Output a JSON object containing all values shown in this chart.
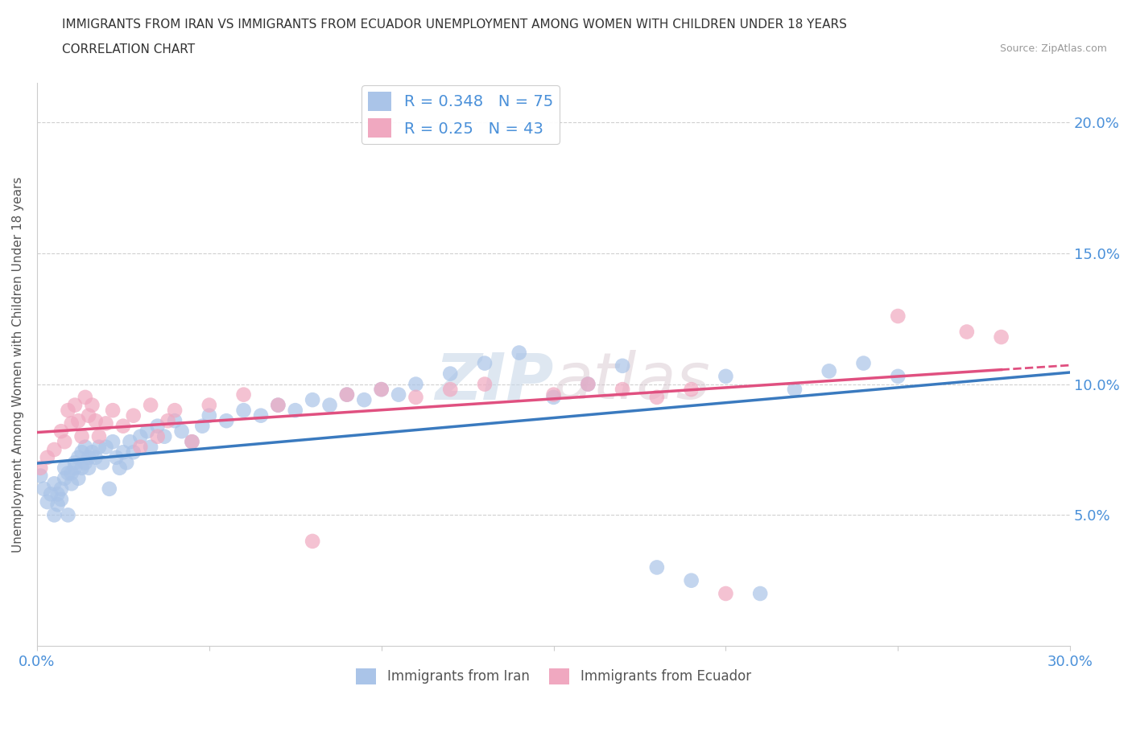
{
  "title_line1": "IMMIGRANTS FROM IRAN VS IMMIGRANTS FROM ECUADOR UNEMPLOYMENT AMONG WOMEN WITH CHILDREN UNDER 18 YEARS",
  "title_line2": "CORRELATION CHART",
  "source": "Source: ZipAtlas.com",
  "ylabel": "Unemployment Among Women with Children Under 18 years",
  "xlim": [
    0.0,
    0.3
  ],
  "ylim": [
    0.0,
    0.215
  ],
  "yticks": [
    0.05,
    0.1,
    0.15,
    0.2
  ],
  "ytick_labels": [
    "5.0%",
    "10.0%",
    "15.0%",
    "20.0%"
  ],
  "xticks": [
    0.0,
    0.05,
    0.1,
    0.15,
    0.2,
    0.25,
    0.3
  ],
  "xtick_labels": [
    "0.0%",
    "",
    "",
    "",
    "",
    "",
    "30.0%"
  ],
  "iran_color": "#aac4e8",
  "ecuador_color": "#f0a8c0",
  "iran_line_color": "#3a7abf",
  "ecuador_line_color": "#e05080",
  "iran_R": 0.348,
  "iran_N": 75,
  "ecuador_R": 0.25,
  "ecuador_N": 43,
  "legend_label_iran": "Immigrants from Iran",
  "legend_label_ecuador": "Immigrants from Ecuador",
  "watermark": "ZIPatlas",
  "iran_x": [
    0.001,
    0.002,
    0.003,
    0.004,
    0.005,
    0.005,
    0.006,
    0.006,
    0.007,
    0.007,
    0.008,
    0.008,
    0.009,
    0.009,
    0.01,
    0.01,
    0.011,
    0.011,
    0.012,
    0.012,
    0.013,
    0.013,
    0.014,
    0.014,
    0.015,
    0.015,
    0.016,
    0.017,
    0.018,
    0.019,
    0.02,
    0.021,
    0.022,
    0.023,
    0.024,
    0.025,
    0.026,
    0.027,
    0.028,
    0.03,
    0.032,
    0.033,
    0.035,
    0.037,
    0.04,
    0.042,
    0.045,
    0.048,
    0.05,
    0.055,
    0.06,
    0.065,
    0.07,
    0.075,
    0.08,
    0.085,
    0.09,
    0.095,
    0.1,
    0.105,
    0.11,
    0.12,
    0.13,
    0.14,
    0.15,
    0.16,
    0.17,
    0.18,
    0.19,
    0.2,
    0.21,
    0.22,
    0.23,
    0.24,
    0.25
  ],
  "iran_y": [
    0.065,
    0.06,
    0.055,
    0.058,
    0.062,
    0.05,
    0.054,
    0.058,
    0.056,
    0.06,
    0.064,
    0.068,
    0.05,
    0.066,
    0.062,
    0.066,
    0.068,
    0.07,
    0.064,
    0.072,
    0.068,
    0.074,
    0.07,
    0.076,
    0.072,
    0.068,
    0.074,
    0.072,
    0.076,
    0.07,
    0.076,
    0.06,
    0.078,
    0.072,
    0.068,
    0.074,
    0.07,
    0.078,
    0.074,
    0.08,
    0.082,
    0.076,
    0.084,
    0.08,
    0.086,
    0.082,
    0.078,
    0.084,
    0.088,
    0.086,
    0.09,
    0.088,
    0.092,
    0.09,
    0.094,
    0.092,
    0.096,
    0.094,
    0.098,
    0.096,
    0.1,
    0.104,
    0.108,
    0.112,
    0.095,
    0.1,
    0.107,
    0.03,
    0.025,
    0.103,
    0.02,
    0.098,
    0.105,
    0.108,
    0.103
  ],
  "ecuador_x": [
    0.001,
    0.003,
    0.005,
    0.007,
    0.008,
    0.009,
    0.01,
    0.011,
    0.012,
    0.013,
    0.014,
    0.015,
    0.016,
    0.017,
    0.018,
    0.02,
    0.022,
    0.025,
    0.028,
    0.03,
    0.033,
    0.035,
    0.038,
    0.04,
    0.045,
    0.05,
    0.06,
    0.07,
    0.08,
    0.09,
    0.1,
    0.11,
    0.12,
    0.13,
    0.15,
    0.16,
    0.17,
    0.18,
    0.19,
    0.2,
    0.25,
    0.27,
    0.28
  ],
  "ecuador_y": [
    0.068,
    0.072,
    0.075,
    0.082,
    0.078,
    0.09,
    0.085,
    0.092,
    0.086,
    0.08,
    0.095,
    0.088,
    0.092,
    0.086,
    0.08,
    0.085,
    0.09,
    0.084,
    0.088,
    0.076,
    0.092,
    0.08,
    0.086,
    0.09,
    0.078,
    0.092,
    0.096,
    0.092,
    0.04,
    0.096,
    0.098,
    0.095,
    0.098,
    0.1,
    0.096,
    0.1,
    0.098,
    0.095,
    0.098,
    0.02,
    0.126,
    0.12,
    0.118
  ]
}
